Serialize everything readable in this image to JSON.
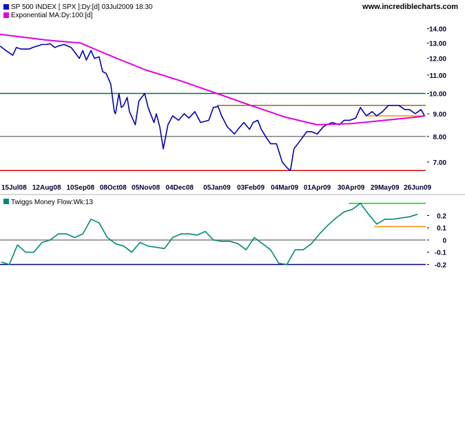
{
  "site": "www.incrediblecharts.com",
  "chart_data": [
    {
      "type": "line",
      "title": "SP 500 INDEX [ SPX ]:Dy:[d]  03Jul2009 18:30",
      "y_scale": "log",
      "ylim": [
        6.4,
        14.6
      ],
      "y_ticks": [
        "14.00",
        "13.00",
        "12.00",
        "11.00",
        "10.00",
        "9.00",
        "8.00",
        "7.00"
      ],
      "y_tick_values": [
        14,
        13,
        12,
        11,
        10,
        9,
        8,
        7
      ],
      "x_ticks": [
        "15Jul08",
        "12Aug08",
        "10Sep08",
        "08Oct08",
        "05Nov08",
        "04Dec08",
        "05Jan09",
        "03Feb09",
        "04Mar09",
        "01Apr09",
        "30Apr09",
        "29May09",
        "26Jun09"
      ],
      "x_tick_dates": [
        "2008-07-15",
        "2008-08-12",
        "2008-09-10",
        "2008-10-08",
        "2008-11-05",
        "2008-12-04",
        "2009-01-05",
        "2009-02-03",
        "2009-03-04",
        "2009-04-01",
        "2009-04-30",
        "2009-05-29",
        "2009-06-26"
      ],
      "xlim": [
        "2008-07-03",
        "2009-07-03"
      ],
      "grid": false,
      "series": [
        {
          "name": "SP 500 INDEX [ SPX ]:Dy:[d]",
          "color": "#0000aa",
          "x": [
            "2008-07-03",
            "2008-07-08",
            "2008-07-14",
            "2008-07-17",
            "2008-07-21",
            "2008-07-24",
            "2008-07-28",
            "2008-07-31",
            "2008-08-04",
            "2008-08-08",
            "2008-08-12",
            "2008-08-15",
            "2008-08-19",
            "2008-08-22",
            "2008-08-27",
            "2008-09-02",
            "2008-09-05",
            "2008-09-09",
            "2008-09-12",
            "2008-09-15",
            "2008-09-19",
            "2008-09-22",
            "2008-09-26",
            "2008-09-29",
            "2008-10-02",
            "2008-10-06",
            "2008-10-09",
            "2008-10-10",
            "2008-10-13",
            "2008-10-15",
            "2008-10-17",
            "2008-10-20",
            "2008-10-22",
            "2008-10-27",
            "2008-10-30",
            "2008-11-04",
            "2008-11-07",
            "2008-11-12",
            "2008-11-14",
            "2008-11-17",
            "2008-11-20",
            "2008-11-24",
            "2008-11-28",
            "2008-12-03",
            "2008-12-08",
            "2008-12-12",
            "2008-12-17",
            "2008-12-22",
            "2008-12-29",
            "2009-01-02",
            "2009-01-06",
            "2009-01-09",
            "2009-01-14",
            "2009-01-20",
            "2009-01-23",
            "2009-01-28",
            "2009-02-02",
            "2009-02-05",
            "2009-02-09",
            "2009-02-12",
            "2009-02-17",
            "2009-02-20",
            "2009-02-25",
            "2009-03-02",
            "2009-03-06",
            "2009-03-09",
            "2009-03-12",
            "2009-03-17",
            "2009-03-23",
            "2009-03-27",
            "2009-04-01",
            "2009-04-06",
            "2009-04-09",
            "2009-04-14",
            "2009-04-20",
            "2009-04-24",
            "2009-04-29",
            "2009-05-04",
            "2009-05-08",
            "2009-05-13",
            "2009-05-18",
            "2009-05-22",
            "2009-05-27",
            "2009-06-01",
            "2009-06-05",
            "2009-06-10",
            "2009-06-15",
            "2009-06-19",
            "2009-06-24",
            "2009-06-29",
            "2009-07-02"
          ],
          "y": [
            12.8,
            12.5,
            12.2,
            12.7,
            12.6,
            12.6,
            12.6,
            12.7,
            12.8,
            12.9,
            12.9,
            12.95,
            12.7,
            12.8,
            12.9,
            12.7,
            12.4,
            12.0,
            12.5,
            11.9,
            12.5,
            12.0,
            12.1,
            11.2,
            11.1,
            10.5,
            9.1,
            9.0,
            10.0,
            9.3,
            9.4,
            9.8,
            9.1,
            8.5,
            9.6,
            10.0,
            9.3,
            8.6,
            9.0,
            8.4,
            7.5,
            8.5,
            8.9,
            8.7,
            9.0,
            8.8,
            9.1,
            8.6,
            8.7,
            9.3,
            9.35,
            8.9,
            8.4,
            8.1,
            8.3,
            8.6,
            8.3,
            8.6,
            8.7,
            8.3,
            7.9,
            7.7,
            7.7,
            7.0,
            6.8,
            6.7,
            7.5,
            7.8,
            8.2,
            8.2,
            8.1,
            8.4,
            8.5,
            8.6,
            8.5,
            8.7,
            8.7,
            8.8,
            9.3,
            8.9,
            9.1,
            8.9,
            9.1,
            9.4,
            9.4,
            9.4,
            9.2,
            9.2,
            9.0,
            9.2,
            8.9
          ]
        },
        {
          "name": "Exponential MA:Dy:100:[d]",
          "color": "#e000e0",
          "x": [
            "2008-07-03",
            "2008-08-12",
            "2008-09-10",
            "2008-10-08",
            "2008-11-05",
            "2008-12-04",
            "2009-01-05",
            "2009-02-03",
            "2009-03-04",
            "2009-04-01",
            "2009-04-30",
            "2009-05-29",
            "2009-06-26",
            "2009-07-02"
          ],
          "y": [
            13.6,
            13.2,
            13.0,
            12.1,
            11.3,
            10.7,
            10.0,
            9.4,
            8.85,
            8.5,
            8.55,
            8.7,
            8.85,
            8.9
          ]
        }
      ],
      "reference_lines": [
        {
          "y": 10.0,
          "color": "#007040",
          "from": "2008-07-03",
          "to": "2009-07-03"
        },
        {
          "y": 8.0,
          "color": "#808080",
          "from": "2008-07-03",
          "to": "2009-07-03"
        },
        {
          "y": 6.7,
          "color": "#cc0000",
          "from": "2008-07-03",
          "to": "2009-07-03"
        },
        {
          "y": 9.4,
          "color": "#8b6b2b",
          "from": "2009-01-05",
          "to": "2009-07-03"
        },
        {
          "y": 8.9,
          "color": "#ff8c00",
          "from": "2009-05-14",
          "to": "2009-07-03"
        }
      ]
    },
    {
      "type": "line",
      "title": "Twiggs Money Flow:Wk:13",
      "ylim": [
        -0.22,
        0.31
      ],
      "y_ticks": [
        "0.2",
        "0.1",
        "0",
        "-0.1",
        "-0.2"
      ],
      "y_tick_values": [
        0.2,
        0.1,
        0,
        -0.1,
        -0.2
      ],
      "xlim": [
        "2008-07-03",
        "2009-07-03"
      ],
      "grid": false,
      "series": [
        {
          "name": "Twiggs Money Flow:Wk:13",
          "color": "#008878",
          "x": [
            "2008-07-04",
            "2008-07-11",
            "2008-07-18",
            "2008-07-25",
            "2008-08-01",
            "2008-08-08",
            "2008-08-15",
            "2008-08-22",
            "2008-08-29",
            "2008-09-05",
            "2008-09-12",
            "2008-09-19",
            "2008-09-26",
            "2008-10-03",
            "2008-10-10",
            "2008-10-17",
            "2008-10-24",
            "2008-10-31",
            "2008-11-07",
            "2008-11-14",
            "2008-11-21",
            "2008-11-28",
            "2008-12-05",
            "2008-12-12",
            "2008-12-19",
            "2008-12-26",
            "2009-01-02",
            "2009-01-09",
            "2009-01-16",
            "2009-01-23",
            "2009-01-30",
            "2009-02-06",
            "2009-02-13",
            "2009-02-20",
            "2009-02-27",
            "2009-03-06",
            "2009-03-13",
            "2009-03-20",
            "2009-03-27",
            "2009-04-03",
            "2009-04-10",
            "2009-04-17",
            "2009-04-24",
            "2009-05-01",
            "2009-05-08",
            "2009-05-15",
            "2009-05-22",
            "2009-05-29",
            "2009-06-05",
            "2009-06-12",
            "2009-06-19",
            "2009-06-26"
          ],
          "y": [
            -0.18,
            -0.2,
            -0.04,
            -0.1,
            -0.1,
            -0.02,
            0.0,
            0.05,
            0.05,
            0.02,
            0.05,
            0.17,
            0.14,
            0.02,
            -0.03,
            -0.05,
            -0.1,
            -0.02,
            -0.05,
            -0.06,
            -0.07,
            0.02,
            0.05,
            0.05,
            0.04,
            0.07,
            0.0,
            -0.01,
            -0.01,
            -0.03,
            -0.08,
            0.02,
            -0.03,
            -0.08,
            -0.19,
            -0.2,
            -0.08,
            -0.08,
            -0.03,
            0.05,
            0.12,
            0.18,
            0.23,
            0.25,
            0.3,
            0.21,
            0.13,
            0.17,
            0.17,
            0.18,
            0.19,
            0.21
          ]
        }
      ],
      "reference_lines": [
        {
          "y": 0.0,
          "color": "#808080",
          "from": "2008-07-03",
          "to": "2009-07-03"
        },
        {
          "y": -0.2,
          "color": "#000080",
          "from": "2008-07-03",
          "to": "2009-07-03"
        },
        {
          "y": 0.3,
          "color": "#00dd00",
          "from": "2009-04-28",
          "to": "2009-07-03"
        },
        {
          "y": 0.11,
          "color": "#ff8c00",
          "from": "2009-05-20",
          "to": "2009-07-03"
        }
      ]
    }
  ]
}
